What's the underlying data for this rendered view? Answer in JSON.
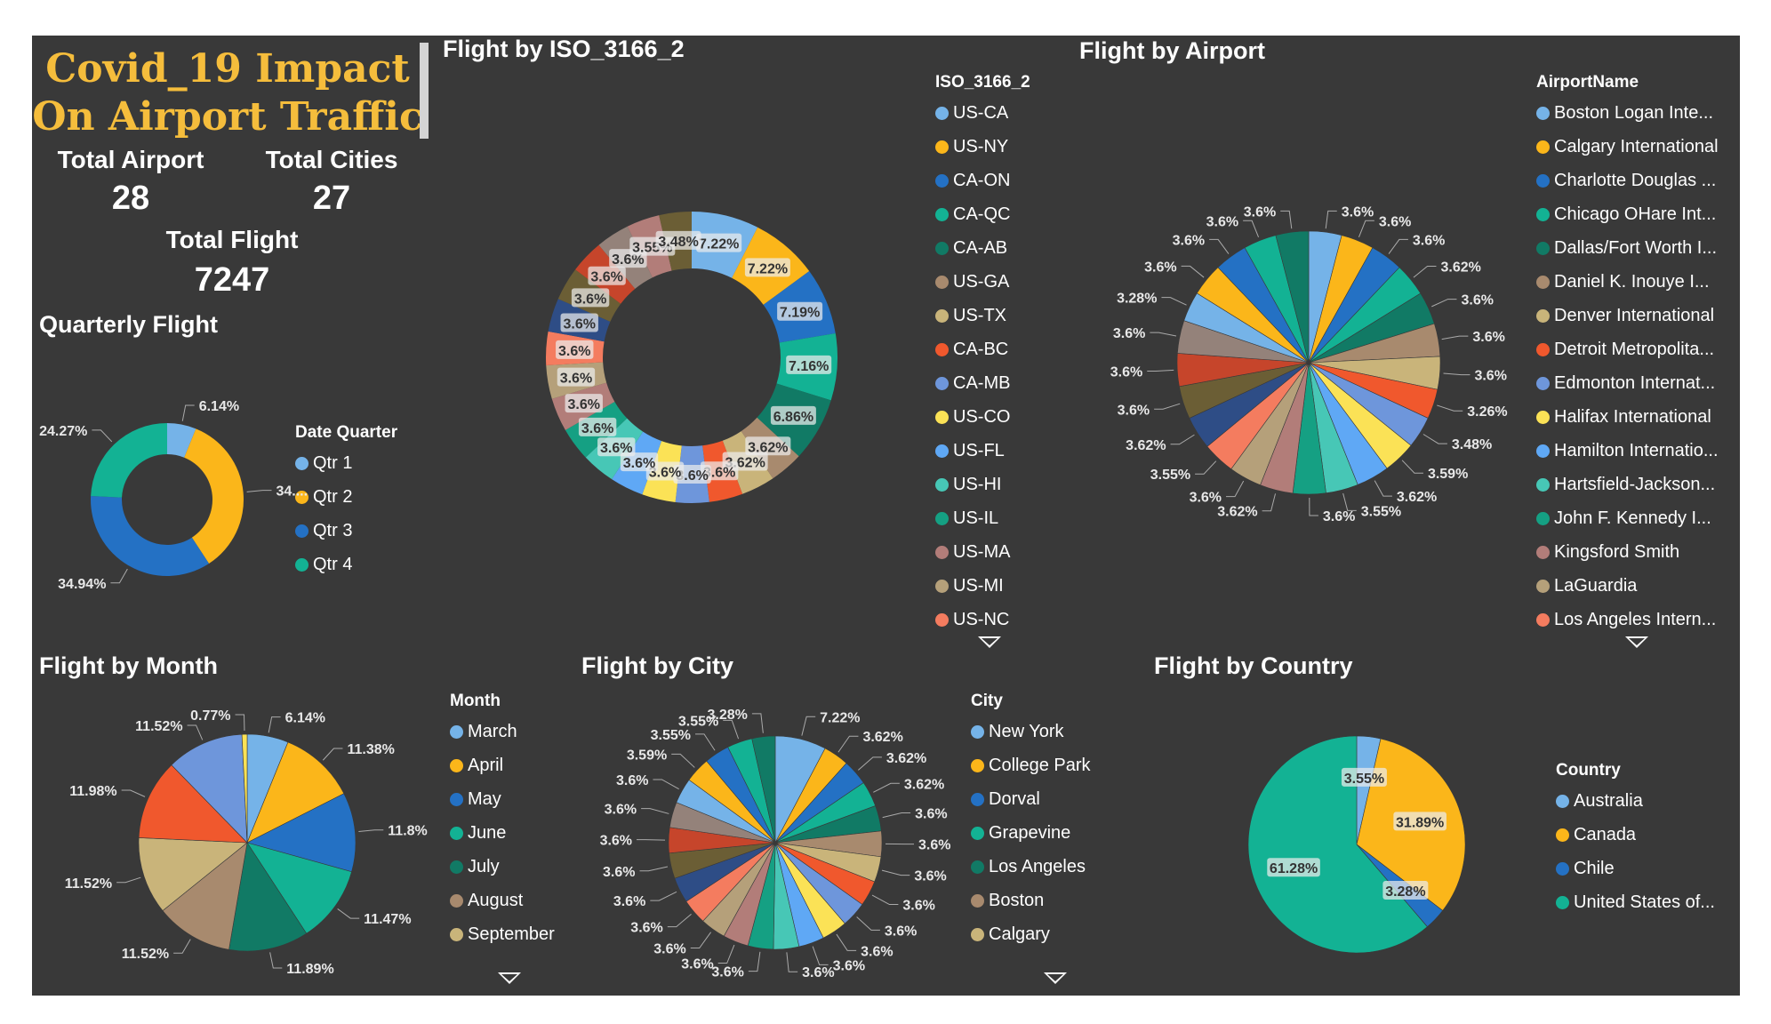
{
  "dashboard": {
    "title_line1": "Covid_19 Impact",
    "title_line2": "On Airport Traffic",
    "kpis": {
      "total_airport_label": "Total Airport",
      "total_airport_value": "28",
      "total_cities_label": "Total Cities",
      "total_cities_value": "27",
      "total_flight_label": "Total Flight",
      "total_flight_value": "7247"
    }
  },
  "colors": {
    "background": "#393939",
    "title_gold": "#f5bd3c",
    "palette": [
      "#75b3e8",
      "#fbb61a",
      "#2471c4",
      "#13b294",
      "#117a65",
      "#a88a6e",
      "#c9b47a",
      "#f0582d",
      "#6e96db",
      "#fbe256",
      "#5fa8f5",
      "#47c7b6",
      "#15a083",
      "#b27d79",
      "#b5a07a",
      "#f47c5f",
      "#2e4d86",
      "#6b5e35",
      "#c6452b",
      "#94827a"
    ]
  },
  "charts": {
    "quarterly": {
      "title": "Quarterly Flight",
      "legend_title": "Date Quarter",
      "legend": [
        "Qtr 1",
        "Qtr 2",
        "Qtr 3",
        "Qtr 4"
      ]
    },
    "iso": {
      "title": "Flight by ISO_3166_2",
      "legend_title": "ISO_3166_2",
      "legend": [
        "US-CA",
        "US-NY",
        "CA-ON",
        "CA-QC",
        "CA-AB",
        "US-GA",
        "US-TX",
        "CA-BC",
        "CA-MB",
        "US-CO",
        "US-FL",
        "US-HI",
        "US-IL",
        "US-MA",
        "US-MI",
        "US-NC"
      ]
    },
    "airport": {
      "title": "Flight by Airport",
      "legend_title": "AirportName",
      "legend": [
        "Boston Logan Inte...",
        "Calgary International",
        "Charlotte Douglas ...",
        "Chicago OHare Int...",
        "Dallas/Fort Worth I...",
        "Daniel K. Inouye I...",
        "Denver International",
        "Detroit Metropolita...",
        "Edmonton Internat...",
        "Halifax International",
        "Hamilton Internatio...",
        "Hartsfield-Jackson...",
        "John F. Kennedy I...",
        "Kingsford Smith",
        "LaGuardia",
        "Los Angeles Intern..."
      ]
    },
    "month": {
      "title": "Flight by Month",
      "legend_title": "Month",
      "legend": [
        "March",
        "April",
        "May",
        "June",
        "July",
        "August",
        "September"
      ]
    },
    "city": {
      "title": "Flight by City",
      "legend_title": "City",
      "legend": [
        "New York",
        "College Park",
        "Dorval",
        "Grapevine",
        "Los Angeles",
        "Boston",
        "Calgary"
      ]
    },
    "country": {
      "title": "Flight by Country",
      "legend_title": "Country",
      "legend": [
        "Australia",
        "Canada",
        "Chile",
        "United States of..."
      ]
    }
  },
  "chart_data": [
    {
      "type": "pie",
      "subtype": "donut",
      "title": "Quarterly Flight",
      "legend_title": "Date Quarter",
      "categories": [
        "Qtr 1",
        "Qtr 2",
        "Qtr 3",
        "Qtr 4"
      ],
      "values": [
        6.14,
        34.65,
        34.94,
        24.27
      ],
      "data_labels": [
        "6.14%",
        "34....",
        "34.94%",
        "24.27%"
      ]
    },
    {
      "type": "pie",
      "subtype": "donut",
      "title": "Flight by ISO_3166_2",
      "legend_title": "ISO_3166_2",
      "values": [
        7.22,
        7.22,
        7.19,
        7.16,
        6.86,
        3.62,
        3.62,
        3.6,
        3.6,
        3.6,
        3.6,
        3.6,
        3.6,
        3.6,
        3.6,
        3.6,
        3.6,
        3.6,
        3.6,
        3.6,
        3.55,
        3.48
      ],
      "data_labels": [
        "7.22%",
        "7.22%",
        "7.19%",
        "7.16%",
        "6.86%",
        "3.62%",
        "3.62%",
        "3.6%",
        "3.6%",
        "3.6%",
        "3.6%",
        "3.6%",
        "3.6%",
        "3.6%",
        "3.6%",
        "3.6%",
        "3.6%",
        "3.6%",
        "3.6%",
        "3.6%",
        "3.55%",
        "3.48%"
      ]
    },
    {
      "type": "pie",
      "title": "Flight by Airport",
      "legend_title": "AirportName",
      "values": [
        3.6,
        3.6,
        3.6,
        3.62,
        3.6,
        3.6,
        3.6,
        3.26,
        3.48,
        3.59,
        3.62,
        3.55,
        3.6,
        3.62,
        3.6,
        3.55,
        3.62,
        3.6,
        3.6,
        3.6,
        3.28,
        3.6,
        3.6,
        3.6,
        3.6
      ],
      "data_labels": [
        "3.6%",
        "3.6%",
        "3.6%",
        "3.62%",
        "3.6%",
        "3.6%",
        "3.6%",
        "3.26%",
        "3.48%",
        "3.59%",
        "3.62%",
        "3.55%",
        "3.6%",
        "3.62%",
        "3.6%",
        "3.55%",
        "3.62%",
        "3.6%",
        "3.6%",
        "3.6%",
        "3.28%",
        "3.6%",
        "3.6%",
        "3.6%",
        "3.6%"
      ]
    },
    {
      "type": "pie",
      "title": "Flight by Month",
      "legend_title": "Month",
      "categories": [
        "March",
        "April",
        "May",
        "June",
        "July",
        "August",
        "September",
        "",
        "",
        ""
      ],
      "values": [
        6.14,
        11.38,
        11.8,
        11.47,
        11.89,
        11.52,
        11.52,
        11.98,
        11.52,
        0.77
      ],
      "data_labels": [
        "6.14%",
        "11.38%",
        "11.8%",
        "11.47%",
        "11.89%",
        "11.52%",
        "11.52%",
        "11.98%",
        "11.52%",
        "0.77%"
      ]
    },
    {
      "type": "pie",
      "title": "Flight by City",
      "legend_title": "City",
      "values": [
        7.22,
        3.62,
        3.62,
        3.62,
        3.6,
        3.6,
        3.6,
        3.6,
        3.6,
        3.6,
        3.6,
        3.6,
        3.6,
        3.6,
        3.6,
        3.6,
        3.6,
        3.6,
        3.6,
        3.6,
        3.6,
        3.59,
        3.55,
        3.55,
        3.28
      ],
      "data_labels": [
        "7.22%",
        "3.62%",
        "3.62%",
        "3.62%",
        "3.6%",
        "3.6%",
        "3.6%",
        "3.6%",
        "3.6%",
        "3.6%",
        "3.6%",
        "3.6%",
        "3.6%",
        "3.6%",
        "3.6%",
        "3.6%",
        "3.6%",
        "3.6%",
        "3.6%",
        "3.6%",
        "3.6%",
        "3.59%",
        "3.55%",
        "3.55%",
        "3.28%"
      ]
    },
    {
      "type": "pie",
      "title": "Flight by Country",
      "legend_title": "Country",
      "categories": [
        "Australia",
        "Canada",
        "Chile",
        "United States of..."
      ],
      "values": [
        3.55,
        31.89,
        3.28,
        61.28
      ],
      "data_labels": [
        "3.55%",
        "31.89%",
        "3.28%",
        "61.28%"
      ]
    }
  ]
}
